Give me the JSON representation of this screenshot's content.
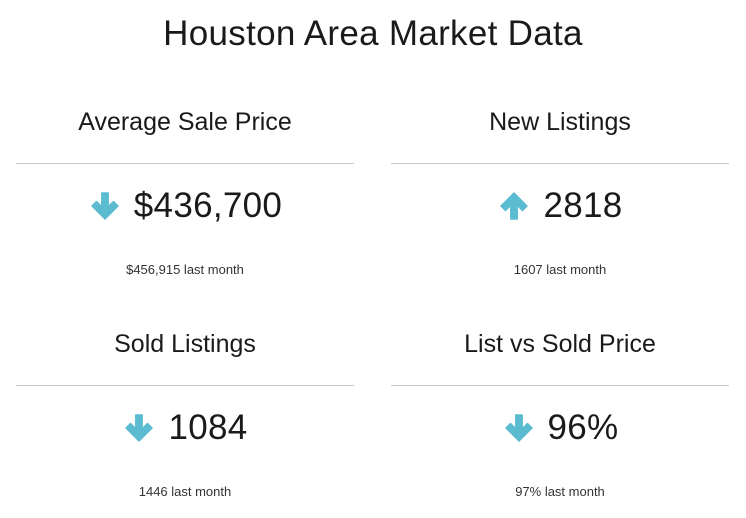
{
  "title": "Houston Area Market Data",
  "colors": {
    "accent": "#5bbcd1",
    "divider": "#c9c9c9",
    "text": "#1a1a1a"
  },
  "cards": [
    {
      "label": "Average Sale Price",
      "value": "$436,700",
      "trend": "down",
      "trend_icon": "arrow-down-icon",
      "previous": "$456,915 last month"
    },
    {
      "label": "New Listings",
      "value": "2818",
      "trend": "up",
      "trend_icon": "arrow-up-icon",
      "previous": "1607 last month"
    },
    {
      "label": "Sold Listings",
      "value": "1084",
      "trend": "down",
      "trend_icon": "arrow-down-icon",
      "previous": "1446 last month"
    },
    {
      "label": "List vs Sold Price",
      "value": "96%",
      "trend": "down",
      "trend_icon": "arrow-down-icon",
      "previous": "97% last month"
    }
  ]
}
